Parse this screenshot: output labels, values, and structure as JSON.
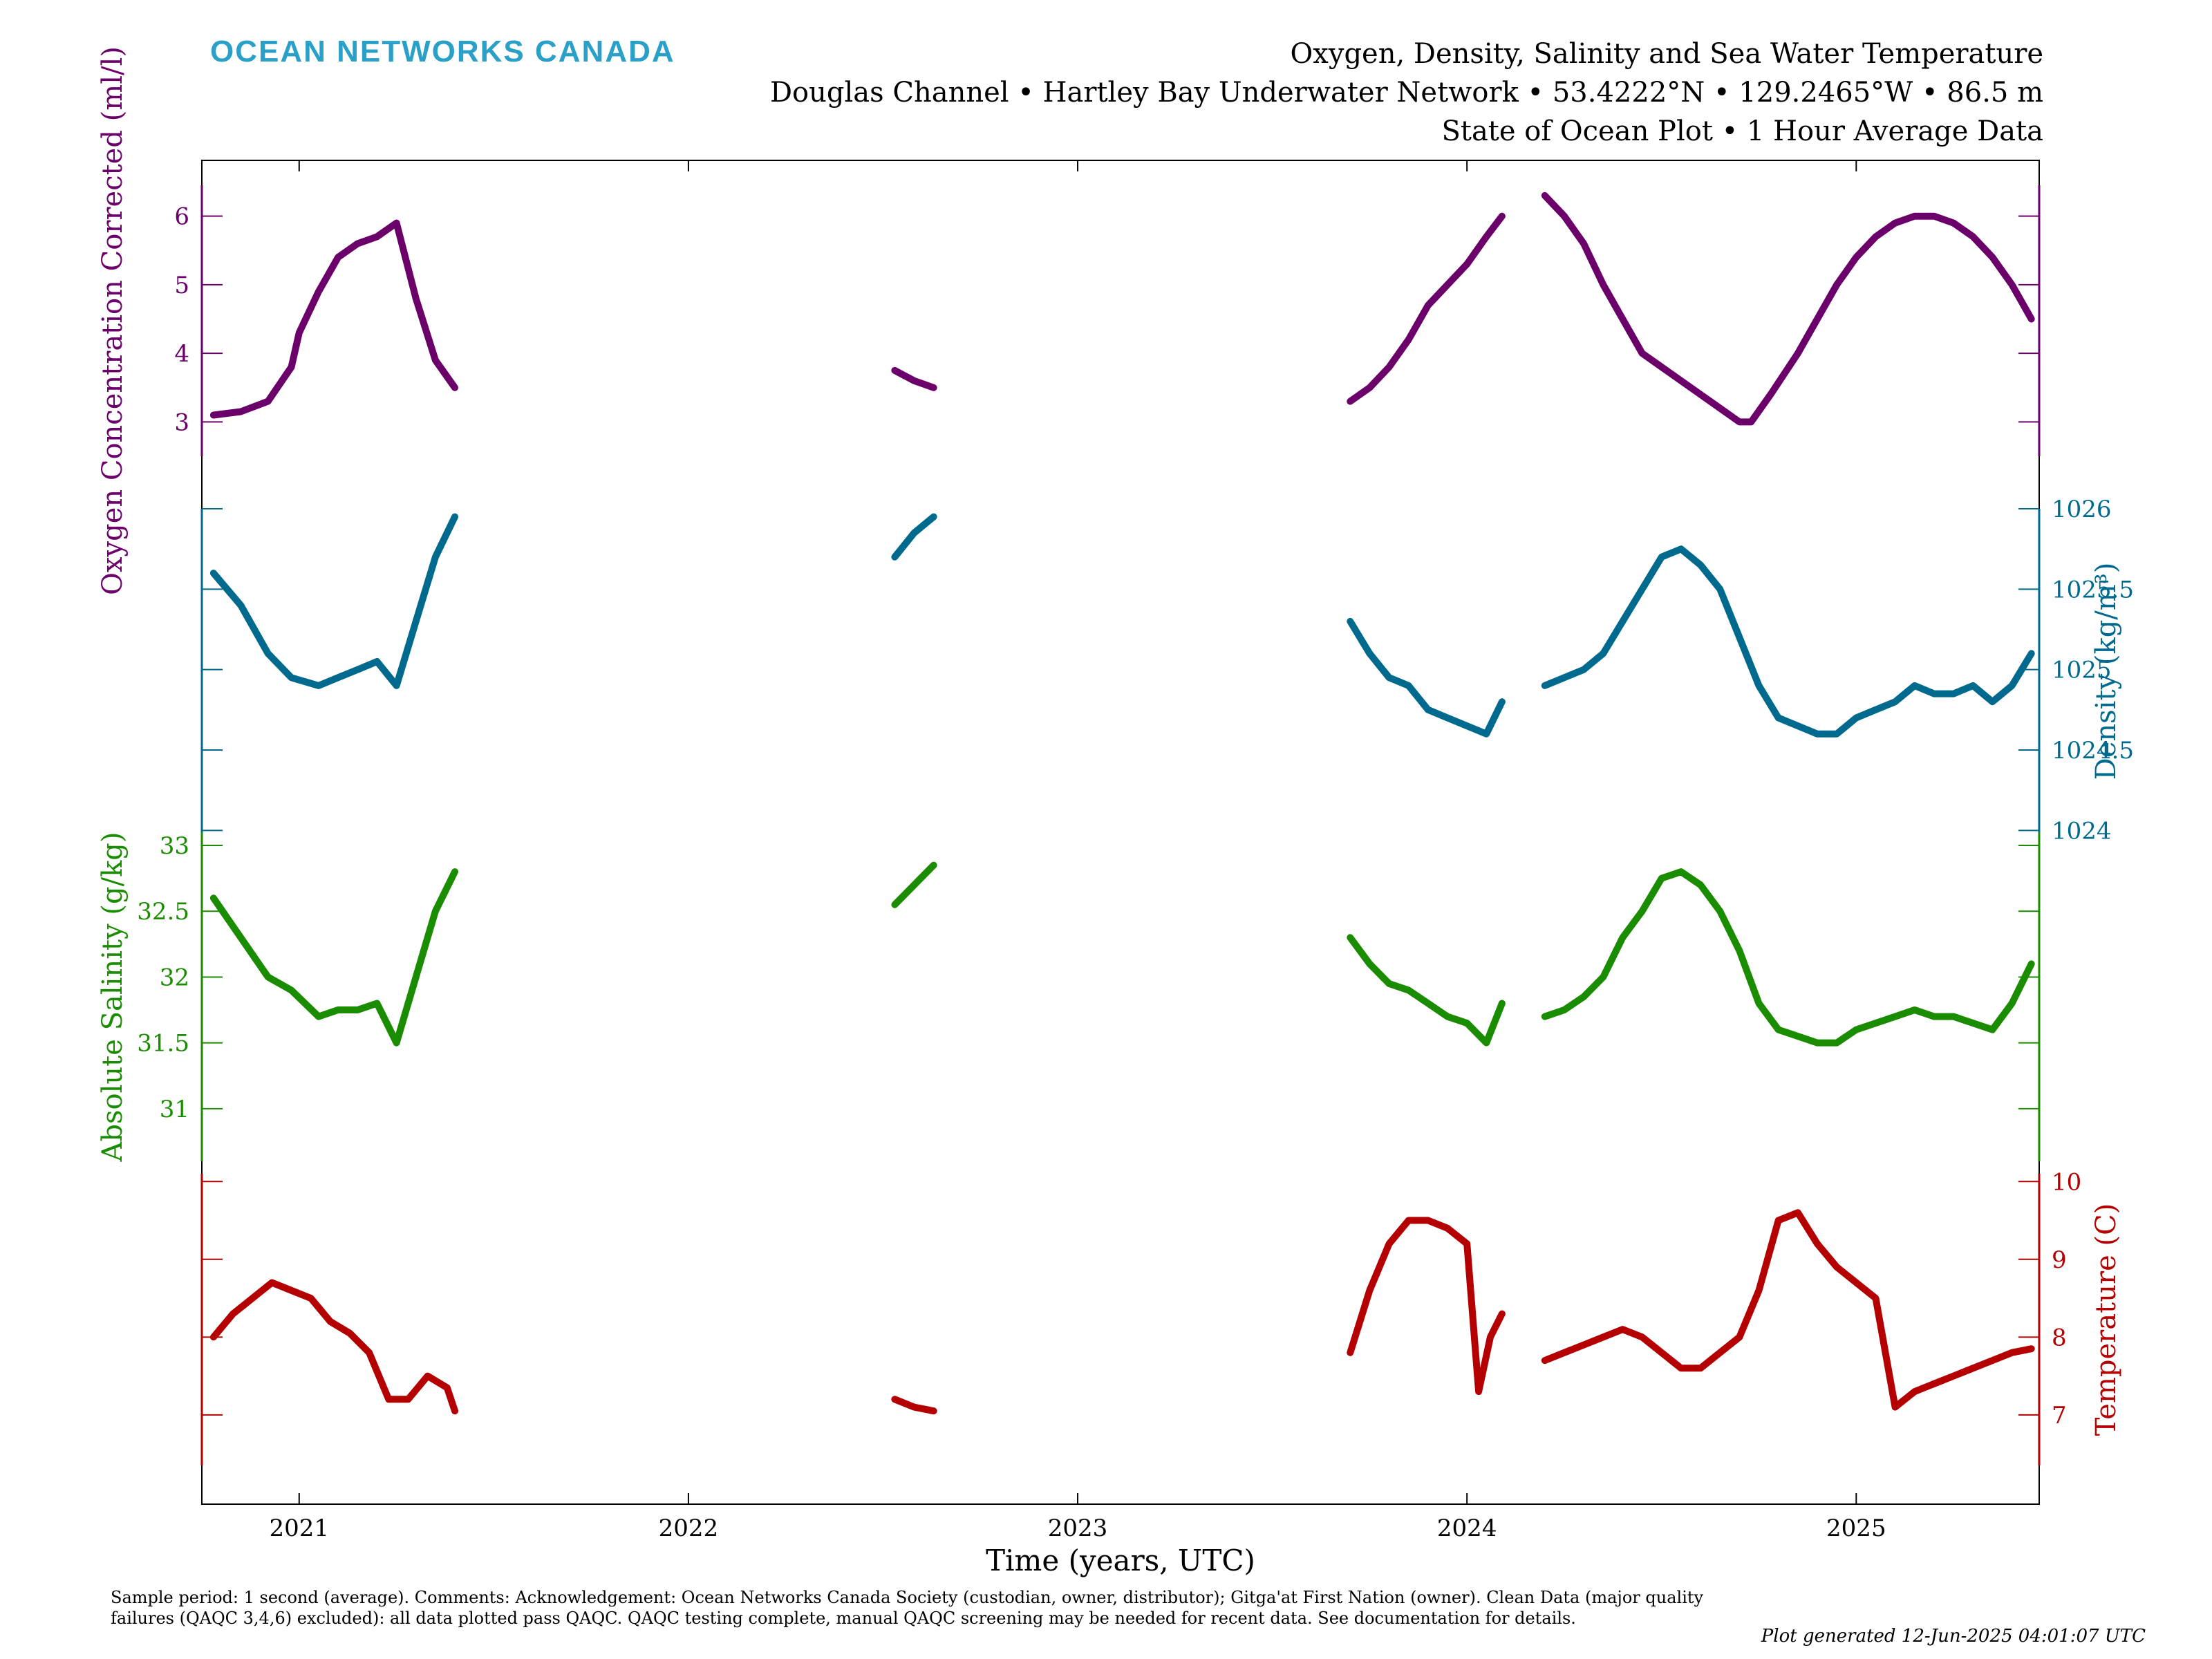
{
  "brand": "OCEAN NETWORKS CANADA",
  "title_lines": [
    "Oxygen, Density, Salinity and Sea Water Temperature",
    "Douglas Channel • Hartley Bay Underwater Network • 53.4222°N • 129.2465°W • 86.5 m",
    "State of Ocean Plot • 1 Hour Average Data"
  ],
  "footnote": "Sample period: 1 second (average). Comments: Acknowledgement: Ocean Networks Canada Society (custodian, owner, distributor); Gitga'at First Nation (owner). Clean Data (major quality failures (QAQC 3,4,6) excluded): all data plotted pass QAQC. QAQC testing complete, manual QAQC screening may be needed for recent data. See documentation for details.",
  "generated": "Plot generated 12-Jun-2025 04:01:07 UTC",
  "chart_data": {
    "type": "line",
    "title": "Oxygen, Density, Salinity and Sea Water Temperature",
    "xlabel": "Time (years, UTC)",
    "xlim": [
      2020.75,
      2025.47
    ],
    "x_ticks": [
      2021,
      2022,
      2023,
      2024,
      2025
    ],
    "x_tick_labels": [
      "2021",
      "2022",
      "2023",
      "2024",
      "2025"
    ],
    "grid": false,
    "series": [
      {
        "name": "Oxygen Concentration Corrected",
        "ylabel": "Oxygen Concentration Corrected (ml/l)",
        "axis_side": "left",
        "color": "#6b006b",
        "ylim": [
          2.5,
          6.45
        ],
        "ticks": [
          3,
          4,
          5,
          6
        ],
        "tick_labels": [
          "3",
          "4",
          "5",
          "6"
        ],
        "segments": [
          {
            "x": [
              2020.78,
              2020.85,
              2020.92,
              2020.98,
              2021.0,
              2021.05,
              2021.1,
              2021.15,
              2021.2,
              2021.25,
              2021.3,
              2021.35,
              2021.4
            ],
            "y": [
              3.1,
              3.15,
              3.3,
              3.8,
              4.3,
              4.9,
              5.4,
              5.6,
              5.7,
              5.9,
              4.8,
              3.9,
              3.5
            ]
          },
          {
            "x": [
              2022.53,
              2022.58,
              2022.63
            ],
            "y": [
              3.75,
              3.6,
              3.5
            ]
          },
          {
            "x": [
              2023.7,
              2023.75,
              2023.8,
              2023.85,
              2023.9,
              2023.95,
              2024.0,
              2024.05,
              2024.09
            ],
            "y": [
              3.3,
              3.5,
              3.8,
              4.2,
              4.7,
              5.0,
              5.3,
              5.7,
              6.0
            ]
          },
          {
            "x": [
              2024.2,
              2024.25,
              2024.3,
              2024.35,
              2024.4,
              2024.45,
              2024.5,
              2024.55,
              2024.6,
              2024.65,
              2024.7,
              2024.73,
              2024.78,
              2024.85,
              2024.9,
              2024.95,
              2025.0,
              2025.05,
              2025.1,
              2025.15,
              2025.2,
              2025.25,
              2025.3,
              2025.35,
              2025.4,
              2025.45
            ],
            "y": [
              6.3,
              6.0,
              5.6,
              5.0,
              4.5,
              4.0,
              3.8,
              3.6,
              3.4,
              3.2,
              3.0,
              3.0,
              3.4,
              4.0,
              4.5,
              5.0,
              5.4,
              5.7,
              5.9,
              6.0,
              6.0,
              5.9,
              5.7,
              5.4,
              5.0,
              4.5
            ]
          }
        ]
      },
      {
        "name": "Density",
        "ylabel": "Density (kg/m³)",
        "axis_side": "right",
        "color": "#006a8e",
        "ylim": [
          1023.98,
          1026.0
        ],
        "ticks": [
          1024,
          1024.5,
          1025,
          1025.5,
          1026
        ],
        "tick_labels": [
          "1024",
          "1024.5",
          "1025",
          "1025.5",
          "1026"
        ],
        "segments": [
          {
            "x": [
              2020.78,
              2020.85,
              2020.92,
              2020.98,
              2021.05,
              2021.1,
              2021.15,
              2021.2,
              2021.25,
              2021.3,
              2021.35,
              2021.4
            ],
            "y": [
              1025.6,
              1025.4,
              1025.1,
              1024.95,
              1024.9,
              1024.95,
              1025.0,
              1025.05,
              1024.9,
              1025.3,
              1025.7,
              1025.95
            ]
          },
          {
            "x": [
              2022.53,
              2022.58,
              2022.63
            ],
            "y": [
              1025.7,
              1025.85,
              1025.95
            ]
          },
          {
            "x": [
              2023.7,
              2023.75,
              2023.8,
              2023.85,
              2023.9,
              2023.95,
              2024.0,
              2024.05,
              2024.09
            ],
            "y": [
              1025.3,
              1025.1,
              1024.95,
              1024.9,
              1024.75,
              1024.7,
              1024.65,
              1024.6,
              1024.8
            ]
          },
          {
            "x": [
              2024.2,
              2024.25,
              2024.3,
              2024.35,
              2024.4,
              2024.45,
              2024.5,
              2024.55,
              2024.6,
              2024.65,
              2024.7,
              2024.75,
              2024.8,
              2024.85,
              2024.9,
              2024.95,
              2025.0,
              2025.05,
              2025.1,
              2025.15,
              2025.2,
              2025.25,
              2025.3,
              2025.35,
              2025.4,
              2025.45
            ],
            "y": [
              1024.9,
              1024.95,
              1025.0,
              1025.1,
              1025.3,
              1025.5,
              1025.7,
              1025.75,
              1025.65,
              1025.5,
              1025.2,
              1024.9,
              1024.7,
              1024.65,
              1024.6,
              1024.6,
              1024.7,
              1024.75,
              1024.8,
              1024.9,
              1024.85,
              1024.85,
              1024.9,
              1024.8,
              1024.9,
              1025.1
            ]
          }
        ]
      },
      {
        "name": "Absolute Salinity",
        "ylabel": "Absolute Salinity (g/kg)",
        "axis_side": "left",
        "color": "#1a8c00",
        "ylim": [
          30.6,
          33.1
        ],
        "ticks": [
          31,
          31.5,
          32,
          32.5,
          33
        ],
        "tick_labels": [
          "31",
          "31.5",
          "32",
          "32.5",
          "33"
        ],
        "segments": [
          {
            "x": [
              2020.78,
              2020.85,
              2020.92,
              2020.98,
              2021.05,
              2021.1,
              2021.15,
              2021.2,
              2021.25,
              2021.3,
              2021.35,
              2021.4
            ],
            "y": [
              32.6,
              32.3,
              32.0,
              31.9,
              31.7,
              31.75,
              31.75,
              31.8,
              31.5,
              32.0,
              32.5,
              32.8
            ]
          },
          {
            "x": [
              2022.53,
              2022.58,
              2022.63
            ],
            "y": [
              32.55,
              32.7,
              32.85
            ]
          },
          {
            "x": [
              2023.7,
              2023.75,
              2023.8,
              2023.85,
              2023.9,
              2023.95,
              2024.0,
              2024.05,
              2024.09
            ],
            "y": [
              32.3,
              32.1,
              31.95,
              31.9,
              31.8,
              31.7,
              31.65,
              31.5,
              31.8
            ]
          },
          {
            "x": [
              2024.2,
              2024.25,
              2024.3,
              2024.35,
              2024.4,
              2024.45,
              2024.5,
              2024.55,
              2024.6,
              2024.65,
              2024.7,
              2024.75,
              2024.8,
              2024.85,
              2024.9,
              2024.95,
              2025.0,
              2025.05,
              2025.1,
              2025.15,
              2025.2,
              2025.25,
              2025.3,
              2025.35,
              2025.4,
              2025.45
            ],
            "y": [
              31.7,
              31.75,
              31.85,
              32.0,
              32.3,
              32.5,
              32.75,
              32.8,
              32.7,
              32.5,
              32.2,
              31.8,
              31.6,
              31.55,
              31.5,
              31.5,
              31.6,
              31.65,
              31.7,
              31.75,
              31.7,
              31.7,
              31.65,
              31.6,
              31.8,
              32.1
            ]
          }
        ]
      },
      {
        "name": "Temperature",
        "ylabel": "Temperature (C)",
        "axis_side": "right",
        "color": "#b40000",
        "ylim": [
          6.35,
          10.1
        ],
        "ticks": [
          7,
          8,
          9,
          10
        ],
        "tick_labels": [
          "7",
          "8",
          "9",
          "10"
        ],
        "segments": [
          {
            "x": [
              2020.78,
              2020.83,
              2020.88,
              2020.93,
              2020.98,
              2021.03,
              2021.08,
              2021.13,
              2021.18,
              2021.23,
              2021.28,
              2021.33,
              2021.38,
              2021.4
            ],
            "y": [
              8.0,
              8.3,
              8.5,
              8.7,
              8.6,
              8.5,
              8.2,
              8.05,
              7.8,
              7.2,
              7.2,
              7.5,
              7.35,
              7.05
            ]
          },
          {
            "x": [
              2022.53,
              2022.58,
              2022.63
            ],
            "y": [
              7.2,
              7.1,
              7.05
            ]
          },
          {
            "x": [
              2023.7,
              2023.75,
              2023.8,
              2023.85,
              2023.9,
              2023.95,
              2024.0,
              2024.03,
              2024.06,
              2024.09
            ],
            "y": [
              7.8,
              8.6,
              9.2,
              9.5,
              9.5,
              9.4,
              9.2,
              7.3,
              8.0,
              8.3
            ]
          },
          {
            "x": [
              2024.2,
              2024.25,
              2024.3,
              2024.35,
              2024.4,
              2024.45,
              2024.5,
              2024.55,
              2024.6,
              2024.65,
              2024.7,
              2024.75,
              2024.8,
              2024.85,
              2024.9,
              2024.95,
              2025.0,
              2025.05,
              2025.1,
              2025.15,
              2025.2,
              2025.25,
              2025.3,
              2025.35,
              2025.4,
              2025.45
            ],
            "y": [
              7.7,
              7.8,
              7.9,
              8.0,
              8.1,
              8.0,
              7.8,
              7.6,
              7.6,
              7.8,
              8.0,
              8.6,
              9.5,
              9.6,
              9.2,
              8.9,
              8.7,
              8.5,
              7.1,
              7.3,
              7.4,
              7.5,
              7.6,
              7.7,
              7.8,
              7.85
            ]
          }
        ]
      }
    ]
  }
}
